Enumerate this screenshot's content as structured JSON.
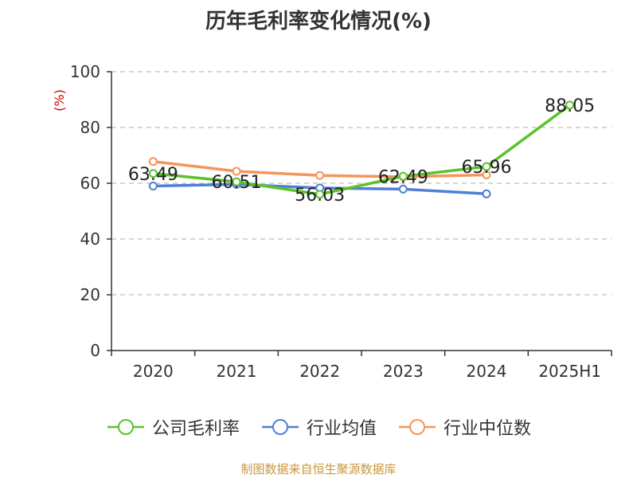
{
  "chart_data": {
    "type": "line",
    "title": "历年毛利率变化情况(%)",
    "ylabel": "(%)",
    "categories": [
      "2020",
      "2021",
      "2022",
      "2023",
      "2024",
      "2025H1"
    ],
    "ylim": [
      0,
      100
    ],
    "yticks": [
      "0",
      "20",
      "40",
      "60",
      "80",
      "100"
    ],
    "grid": true,
    "legend_position": "bottom",
    "series": [
      {
        "name": "公司毛利率",
        "color": "#5bc22a",
        "values": [
          63.49,
          60.51,
          56.03,
          62.49,
          65.96,
          88.05
        ],
        "labels": [
          "63.49",
          "60.51",
          "56.03",
          "62.49",
          "65.96",
          "88.05"
        ]
      },
      {
        "name": "行业均值",
        "color": "#4f7fd6",
        "values": [
          59.0,
          59.6,
          58.3,
          57.9,
          56.2,
          null
        ]
      },
      {
        "name": "行业中位数",
        "color": "#f5945c",
        "values": [
          67.8,
          64.3,
          62.8,
          62.3,
          63.0,
          null
        ]
      }
    ]
  },
  "source_note": "制图数据来自恒生聚源数据库"
}
